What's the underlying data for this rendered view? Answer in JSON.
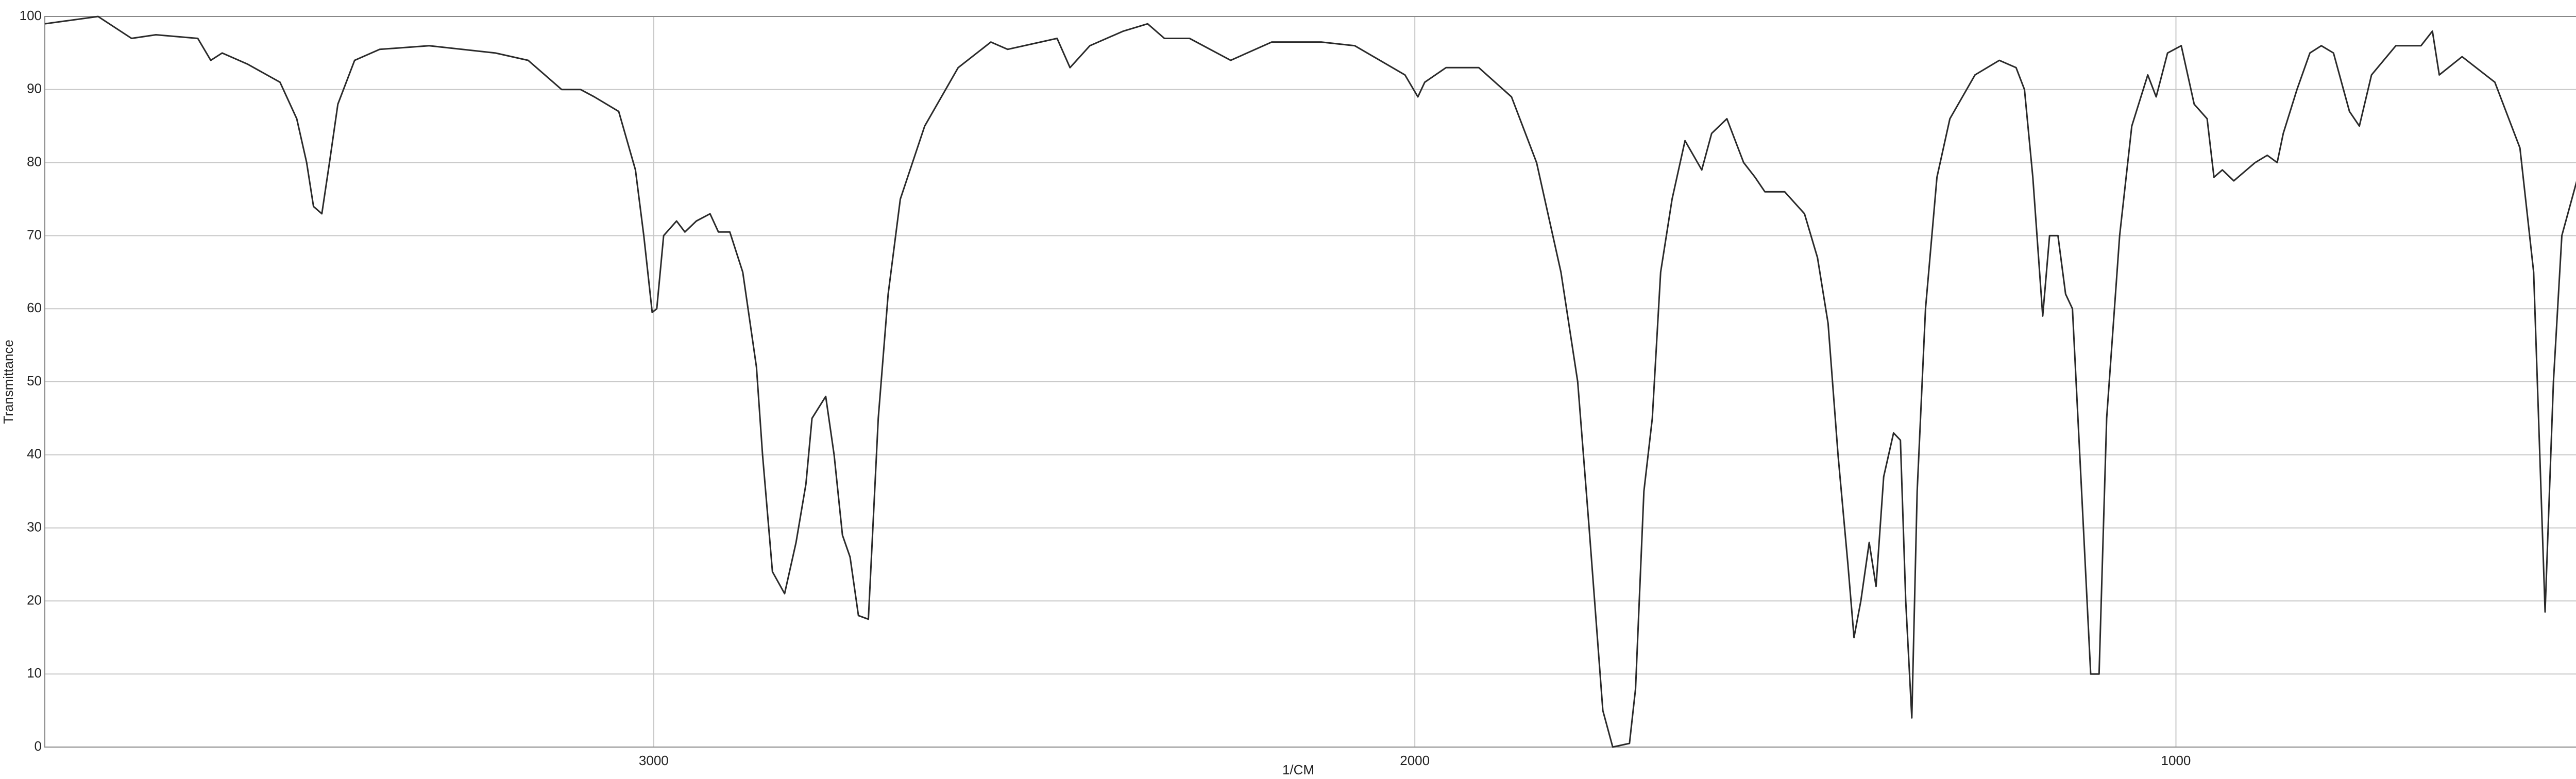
{
  "chart_data": {
    "type": "line",
    "xlabel": "1/CM",
    "ylabel": "Transmittance",
    "xlim": [
      3800,
      450
    ],
    "ylim": [
      0,
      100
    ],
    "xticks": [
      3000,
      2000,
      1000
    ],
    "yticks": [
      0,
      10,
      20,
      30,
      40,
      50,
      60,
      70,
      80,
      90,
      100
    ],
    "grid": true,
    "series": [
      {
        "name": "Transmittance",
        "color": "#2a2a2a",
        "x": [
          3800,
          3730,
          3686,
          3654,
          3599,
          3582,
          3567,
          3534,
          3491,
          3469,
          3456,
          3447,
          3436,
          3426,
          3415,
          3393,
          3360,
          3295,
          3208,
          3165,
          3121,
          3096,
          3078,
          3046,
          3024,
          3013,
          3002,
          2996,
          2987,
          2970,
          2959,
          2944,
          2926,
          2915,
          2900,
          2883,
          2865,
          2857,
          2844,
          2828,
          2813,
          2800,
          2792,
          2774,
          2763,
          2752,
          2742,
          2731,
          2718,
          2705,
          2692,
          2676,
          2644,
          2600,
          2557,
          2535,
          2470,
          2453,
          2427,
          2383,
          2351,
          2329,
          2296,
          2242,
          2188,
          2123,
          2079,
          2013,
          1996,
          1987,
          1959,
          1916,
          1873,
          1840,
          1808,
          1786,
          1771,
          1753,
          1740,
          1718,
          1710,
          1699,
          1688,
          1677,
          1662,
          1645,
          1623,
          1610,
          1590,
          1568,
          1553,
          1540,
          1514,
          1488,
          1471,
          1457,
          1444,
          1431,
          1423,
          1414,
          1403,
          1394,
          1384,
          1371,
          1362,
          1355,
          1347,
          1340,
          1329,
          1314,
          1297,
          1264,
          1232,
          1210,
          1199,
          1188,
          1175,
          1166,
          1155,
          1145,
          1136,
          1123,
          1112,
          1101,
          1091,
          1074,
          1058,
          1037,
          1026,
          1011,
          993,
          976,
          959,
          950,
          939,
          924,
          896,
          880,
          867,
          859,
          841,
          824,
          809,
          793,
          772,
          759,
          743,
          711,
          678,
          663,
          654,
          624,
          581,
          548,
          530,
          515,
          504,
          493,
          472,
          450
        ],
        "values": [
          99,
          100,
          97,
          97.5,
          97,
          94,
          95,
          93.5,
          91,
          86,
          80,
          74,
          73,
          80,
          88,
          94,
          95.5,
          96,
          95,
          94,
          90,
          90,
          89,
          87,
          79,
          70,
          59.5,
          60,
          70,
          72,
          70.5,
          72,
          73,
          70.5,
          70.5,
          65,
          52,
          40,
          24,
          21,
          28,
          36,
          45,
          48,
          40,
          29,
          26,
          18,
          17.5,
          45,
          62,
          75,
          85,
          93,
          96.5,
          95.5,
          97,
          93,
          96,
          98,
          99,
          97,
          97,
          94,
          96.5,
          96.5,
          96,
          92,
          89,
          91,
          93,
          93,
          89,
          80,
          65,
          50,
          30,
          5,
          0,
          0.5,
          8,
          35,
          45,
          65,
          75,
          83,
          79,
          84,
          86,
          80,
          78,
          76,
          76,
          73,
          67,
          58,
          40,
          25,
          15,
          20,
          28,
          22,
          37,
          43,
          42,
          20,
          4,
          35,
          60,
          78,
          86,
          92,
          94,
          93,
          90,
          78,
          59,
          70,
          70,
          62,
          60,
          33,
          10,
          10,
          45,
          70,
          85,
          92,
          89,
          95,
          96,
          88,
          86,
          78,
          79,
          77.5,
          80,
          81,
          80,
          84,
          90,
          95,
          96,
          95,
          87,
          85,
          92,
          96,
          96,
          98,
          92,
          94.5,
          91,
          82,
          65,
          18.5,
          50,
          70,
          78,
          77
        ]
      }
    ]
  }
}
